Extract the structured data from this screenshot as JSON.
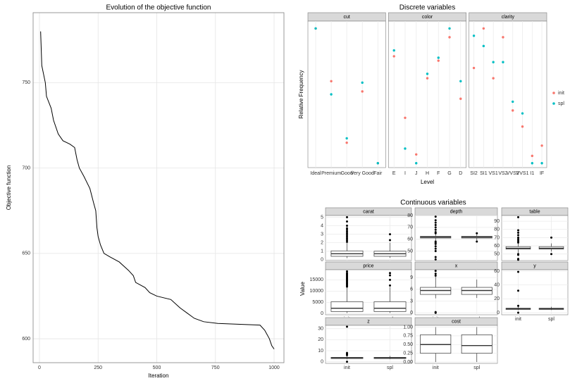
{
  "chart_data": [
    {
      "type": "line",
      "title": "Evolution of the objective function",
      "x_label": "Iteration",
      "y_label": "Objective function",
      "x": [
        5,
        10,
        25,
        30,
        50,
        60,
        80,
        100,
        130,
        150,
        160,
        170,
        190,
        215,
        230,
        240,
        245,
        250,
        260,
        275,
        300,
        340,
        380,
        400,
        410,
        450,
        470,
        500,
        560,
        600,
        630,
        660,
        700,
        760,
        940,
        960,
        980,
        990,
        1000
      ],
      "values": [
        780,
        760,
        750,
        742,
        735,
        728,
        720,
        716,
        714,
        712,
        705,
        700,
        695,
        688,
        680,
        675,
        665,
        660,
        655,
        650,
        648,
        645,
        640,
        637,
        633,
        630,
        627,
        625,
        623,
        618,
        615,
        612,
        610,
        609,
        608,
        605,
        600,
        596,
        594
      ],
      "color": "#000000",
      "xlim": [
        -27,
        1042
      ],
      "ylim": [
        586,
        791
      ],
      "xticks": [
        0,
        250,
        500,
        750,
        1000
      ],
      "yticks": [
        600,
        650,
        700,
        750
      ],
      "grid": true
    },
    {
      "type": "facet-scatter",
      "title": "Discrete variables",
      "x_label": "Level",
      "y_label": "Relative  Frequency",
      "ylim": [
        0,
        1
      ],
      "facets": [
        {
          "title": "cut",
          "categories": [
            "Ideal",
            "Premium",
            "Good",
            "Very Good",
            "Fair"
          ],
          "series": [
            {
              "name": "init",
              "color": "#f8766d",
              "values": [
                0.95,
                0.59,
                0.17,
                0.52,
                0.03
              ]
            },
            {
              "name": "spl",
              "color": "#00bfc4",
              "values": [
                0.95,
                0.5,
                0.2,
                0.58,
                0.03
              ]
            }
          ]
        },
        {
          "title": "color",
          "categories": [
            "E",
            "I",
            "J",
            "H",
            "F",
            "G",
            "D"
          ],
          "series": [
            {
              "name": "init",
              "color": "#f8766d",
              "values": [
                0.76,
                0.34,
                0.09,
                0.61,
                0.73,
                0.89,
                0.47
              ]
            },
            {
              "name": "spl",
              "color": "#00bfc4",
              "values": [
                0.8,
                0.13,
                0.03,
                0.64,
                0.75,
                0.95,
                0.59
              ]
            }
          ]
        },
        {
          "title": "clarity",
          "categories": [
            "SI2",
            "SI1",
            "VS1",
            "VS2",
            "VVS2",
            "VVS1",
            "I1",
            "IF"
          ],
          "series": [
            {
              "name": "init",
              "color": "#f8766d",
              "values": [
                0.68,
                0.95,
                0.61,
                0.89,
                0.39,
                0.28,
                0.08,
                0.15
              ]
            },
            {
              "name": "spl",
              "color": "#00bfc4",
              "values": [
                0.9,
                0.83,
                0.72,
                0.72,
                0.45,
                0.37,
                0.03,
                0.03
              ]
            }
          ]
        }
      ]
    },
    {
      "type": "facet-box",
      "title": "Continuous variables",
      "y_label": "Value",
      "facets": [
        {
          "title": "carat",
          "categories": [
            "init",
            "spl"
          ],
          "ylim": [
            -0.1,
            5.2
          ],
          "yticks": [
            0,
            1,
            2,
            3,
            4,
            5
          ],
          "boxes": [
            {
              "low": 0.2,
              "q1": 0.4,
              "median": 0.7,
              "q3": 1.04,
              "high": 2.0,
              "outliers": [
                2.1,
                2.3,
                2.5,
                2.7,
                2.9,
                3.1,
                3.3,
                3.5,
                3.7,
                4.0,
                4.5,
                5.0
              ]
            },
            {
              "low": 0.23,
              "q1": 0.4,
              "median": 0.7,
              "q3": 1.0,
              "high": 2.0,
              "outliers": [
                2.3,
                3.0
              ]
            }
          ]
        },
        {
          "title": "depth",
          "categories": [
            "init",
            "spl"
          ],
          "ylim": [
            42,
            80
          ],
          "yticks": [
            50,
            60,
            70,
            80
          ],
          "boxes": [
            {
              "low": 58.8,
              "q1": 61,
              "median": 61.8,
              "q3": 62.5,
              "high": 64.7,
              "outliers": [
                43,
                45,
                50,
                52,
                54,
                56,
                57,
                58,
                65,
                66,
                68,
                70,
                72,
                74,
                76,
                79
              ]
            },
            {
              "low": 59,
              "q1": 61,
              "median": 61.8,
              "q3": 62.5,
              "high": 64,
              "outliers": [
                58,
                65
              ]
            }
          ]
        },
        {
          "title": "table",
          "categories": [
            "init",
            "spl"
          ],
          "ylim": [
            42,
            97
          ],
          "yticks": [
            50,
            60,
            70,
            80,
            90
          ],
          "boxes": [
            {
              "low": 51.6,
              "q1": 56,
              "median": 57,
              "q3": 59,
              "high": 63.5,
              "outliers": [
                43,
                44,
                49,
                50,
                64,
                66,
                68,
                70,
                73,
                76,
                79,
                95
              ]
            },
            {
              "low": 53,
              "q1": 56,
              "median": 57,
              "q3": 59,
              "high": 63,
              "outliers": [
                50,
                70
              ]
            }
          ]
        },
        {
          "title": "price",
          "categories": [
            "init",
            "spl"
          ],
          "ylim": [
            -500,
            19500
          ],
          "yticks": [
            0,
            5000,
            10000,
            15000
          ],
          "boxes": [
            {
              "low": 326,
              "q1": 950,
              "median": 2400,
              "q3": 5300,
              "high": 11900,
              "outliers": [
                12000,
                12500,
                13000,
                13500,
                14000,
                14500,
                15000,
                15500,
                16000,
                16500,
                17000,
                17500,
                18000,
                18800
              ]
            },
            {
              "low": 340,
              "q1": 950,
              "median": 2400,
              "q3": 5300,
              "high": 11800,
              "outliers": [
                12500,
                15000,
                17000,
                18000
              ]
            }
          ]
        },
        {
          "title": "x",
          "categories": [
            "init",
            "spl"
          ],
          "ylim": [
            -0.5,
            11
          ],
          "yticks": [
            0,
            3,
            6,
            9
          ],
          "boxes": [
            {
              "low": 3.7,
              "q1": 4.7,
              "median": 5.7,
              "q3": 6.5,
              "high": 9.3,
              "outliers": [
                0,
                0.2,
                9.5,
                10,
                10.7
              ]
            },
            {
              "low": 3.8,
              "q1": 4.7,
              "median": 5.7,
              "q3": 6.5,
              "high": 8.5,
              "outliers": []
            }
          ]
        },
        {
          "title": "y",
          "categories": [
            "init",
            "spl"
          ],
          "ylim": [
            -3,
            62
          ],
          "yticks": [
            0,
            20,
            40,
            60
          ],
          "boxes": [
            {
              "low": 3.7,
              "q1": 4.7,
              "median": 5.7,
              "q3": 6.5,
              "high": 9.3,
              "outliers": [
                0,
                10,
                31.8,
                58.9
              ]
            },
            {
              "low": 3.8,
              "q1": 4.7,
              "median": 5.7,
              "q3": 6.5,
              "high": 8.5,
              "outliers": []
            }
          ]
        },
        {
          "title": "z",
          "categories": [
            "init",
            "spl"
          ],
          "ylim": [
            -1.5,
            33
          ],
          "yticks": [
            0,
            10,
            20,
            30
          ],
          "boxes": [
            {
              "low": 2.2,
              "q1": 2.9,
              "median": 3.5,
              "q3": 4.0,
              "high": 5.7,
              "outliers": [
                0,
                6,
                7,
                8,
                31.8
              ]
            },
            {
              "low": 2.4,
              "q1": 2.9,
              "median": 3.5,
              "q3": 4.0,
              "high": 5.3,
              "outliers": []
            }
          ]
        },
        {
          "title": "cost",
          "categories": [
            "init",
            "spl"
          ],
          "ylim": [
            -0.04,
            1.05
          ],
          "yticks": [
            {
              "value": 0,
              "label": "0.00"
            },
            {
              "value": 0.25,
              "label": "0.25"
            },
            {
              "value": 0.5,
              "label": "0.50"
            },
            {
              "value": 0.75,
              "label": "0.75"
            },
            {
              "value": 1,
              "label": "1.00"
            }
          ],
          "boxes": [
            {
              "low": 0,
              "q1": 0.25,
              "median": 0.5,
              "q3": 0.78,
              "high": 1.0,
              "outliers": []
            },
            {
              "low": 0,
              "q1": 0.25,
              "median": 0.47,
              "q3": 0.78,
              "high": 1.0,
              "outliers": []
            }
          ]
        }
      ]
    }
  ]
}
